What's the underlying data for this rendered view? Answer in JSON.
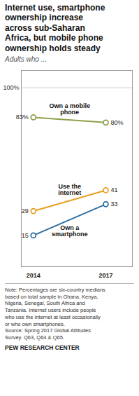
{
  "chart_data": {
    "type": "line",
    "title": "Internet use, smartphone\nownership increase\nacross sub-Saharan\nAfrica, but mobile phone\nownership holds steady",
    "subtitle": "Adults who ...",
    "x": [
      2014,
      2017
    ],
    "xlim": [
      2013.5,
      2018.1
    ],
    "xticks": [
      2014,
      2017
    ],
    "ylim": [
      -3,
      110
    ],
    "yticks": [
      {
        "value": 100,
        "label": "100%"
      }
    ],
    "grid": true,
    "data_labels": true,
    "marker": "circle",
    "series": [
      {
        "name": "Own a mobile\nphone",
        "color": "#8fa04a",
        "values": [
          83,
          80
        ],
        "value_labels": [
          "83%",
          "80%"
        ]
      },
      {
        "name": "Use the\ninternet",
        "color": "#e8a020",
        "values": [
          29,
          41
        ],
        "value_labels": [
          "29",
          "41"
        ]
      },
      {
        "name": "Own a\nsmartphone",
        "color": "#2e6fa0",
        "values": [
          15,
          33
        ],
        "value_labels": [
          "15",
          "33"
        ]
      }
    ],
    "note": "Note: Percentages are six-country medians\nbased on total sample in Ghana, Kenya,\nNigeria, Senegal, South Africa and\nTanzania. Internet users include people\nwho use the internet at least occasionally\nor who own smartphones.\nSource: Spring 2017 Global Attitudes\nSurvey. Q63, Q64 & Q65.",
    "source": "PEW RESEARCH CENTER"
  }
}
